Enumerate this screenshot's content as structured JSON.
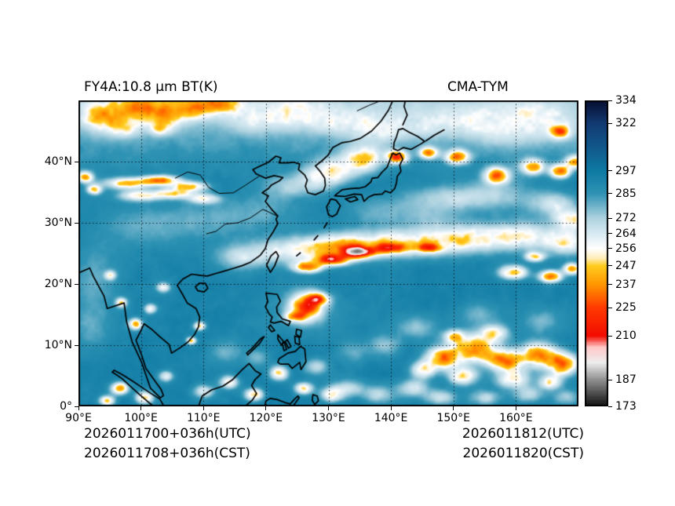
{
  "titles": {
    "left": "FY4A:10.8 μm BT(K)",
    "right": "CMA-TYM"
  },
  "footer": {
    "left_line1": "2026011700+036h(UTC)",
    "left_line2": "2026011708+036h(CST)",
    "right_line1": "2026011812(UTC)",
    "right_line2": "2026011820(CST)"
  },
  "chart_data": {
    "type": "heatmap",
    "title": "FY4A:10.8 μm BT(K)",
    "model": "CMA-TYM",
    "variable": "10.8 μm brightness temperature",
    "units": "K",
    "x_ticks": [
      "90°E",
      "100°E",
      "110°E",
      "120°E",
      "130°E",
      "140°E",
      "150°E",
      "160°E"
    ],
    "x_tick_values": [
      90,
      100,
      110,
      120,
      130,
      140,
      150,
      160
    ],
    "y_ticks": [
      "0°",
      "10°N",
      "20°N",
      "30°N",
      "40°N"
    ],
    "y_tick_values": [
      0,
      10,
      20,
      30,
      40
    ],
    "lon_range": [
      90,
      170
    ],
    "lat_range": [
      0,
      50
    ],
    "grid": true,
    "colorbar_ticks": [
      334,
      322,
      297,
      285,
      272,
      264,
      256,
      247,
      237,
      225,
      210,
      187,
      173
    ],
    "colorbar_range": [
      173,
      334
    ],
    "colormap_stops": [
      [
        173,
        "#0f0f0f"
      ],
      [
        187,
        "#909090"
      ],
      [
        196,
        "#ededed"
      ],
      [
        204,
        "#ffc9c9"
      ],
      [
        210,
        "#f20c00"
      ],
      [
        225,
        "#ff3a00"
      ],
      [
        237,
        "#ff9500"
      ],
      [
        247,
        "#ffcd1f"
      ],
      [
        251,
        "#ffedbb"
      ],
      [
        256,
        "#ffffff"
      ],
      [
        264,
        "#d8eaf2"
      ],
      [
        272,
        "#aed2e0"
      ],
      [
        285,
        "#2f93b4"
      ],
      [
        297,
        "#0d7aa4"
      ],
      [
        310,
        "#11568a"
      ],
      [
        322,
        "#123a72"
      ],
      [
        334,
        "#070d2e"
      ]
    ],
    "notable_features": [
      "tropical cyclone near 126°E 16°N east of Luzon",
      "large convective cluster 148-170°E 3-12°N",
      "frontal cloud band along 23-28°N",
      "cold cloud patches over NW of domain 44-50°N"
    ]
  }
}
